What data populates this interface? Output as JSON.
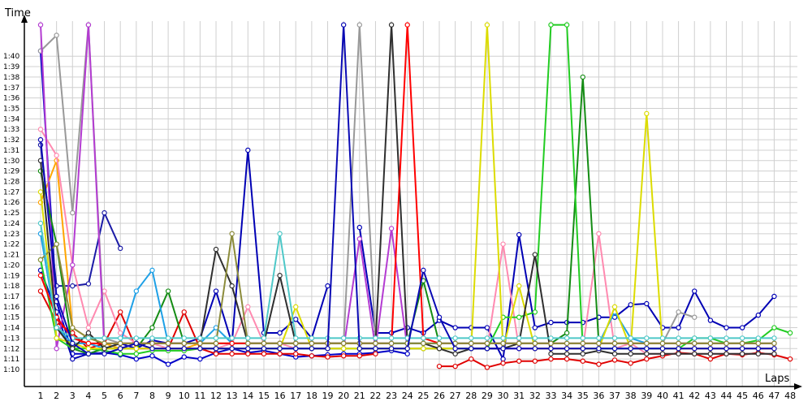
{
  "chart_data": {
    "type": "line",
    "title": "",
    "xlabel": "Laps",
    "ylabel": "Time",
    "x": [
      1,
      2,
      3,
      4,
      5,
      6,
      7,
      8,
      9,
      10,
      11,
      12,
      13,
      14,
      15,
      16,
      17,
      18,
      19,
      20,
      21,
      22,
      23,
      24,
      25,
      26,
      27,
      28,
      29,
      30,
      31,
      32,
      33,
      34,
      35,
      36,
      37,
      38,
      39,
      40,
      41,
      42,
      43,
      44,
      45,
      46,
      47,
      48
    ],
    "y_tick_labels": [
      "1:10",
      "1:11",
      "1:12",
      "1:13",
      "1:14",
      "1:15",
      "1:16",
      "1:17",
      "1:18",
      "1:19",
      "1:20",
      "1:21",
      "1:22",
      "1:23",
      "1:24",
      "1:25",
      "1:26",
      "1:27",
      "1:28",
      "1:29",
      "1:30",
      "1:31",
      "1:32",
      "1:33",
      "1:34",
      "1:35",
      "1:36",
      "1:37",
      "1:38",
      "1:39",
      "1:40"
    ],
    "y_unit": "seconds",
    "ylim": [
      69,
      103
    ],
    "grid": true,
    "legend": "none",
    "series": [
      {
        "color": "#0000c8",
        "values": [
          100.5,
          76.5,
          71.5,
          71.5,
          71.6,
          71.4,
          71.0,
          71.3,
          70.5,
          71.2,
          71.0,
          71.6,
          72.0,
          71.6,
          71.8,
          71.5,
          71.2,
          71.3,
          71.4,
          71.5,
          71.5,
          71.6,
          71.8,
          71.5,
          null,
          null,
          null,
          null,
          null,
          null,
          null,
          null,
          null,
          null,
          null,
          null,
          null,
          null,
          null,
          null,
          null,
          null,
          null,
          null,
          null,
          null,
          null,
          null
        ]
      },
      {
        "color": "#1a1aa6",
        "values": [
          91.5,
          78.0,
          78.0,
          78.2,
          85.0,
          81.6,
          null,
          null,
          null,
          null,
          null,
          null,
          null,
          null,
          null,
          null,
          null,
          null,
          null,
          null,
          null,
          null,
          null,
          null,
          null,
          null,
          null,
          null,
          null,
          null,
          null,
          null,
          null,
          null,
          null,
          null,
          null,
          null,
          null,
          null,
          null,
          null,
          null,
          null,
          null,
          null,
          null,
          null
        ]
      },
      {
        "color": "#0000b4",
        "values": [
          79.5,
          75.5,
          71.0,
          71.5,
          72.0,
          72.5,
          72.0,
          72.8,
          72.5,
          72.5,
          73.0,
          77.5,
          72.5,
          91.0,
          73.5,
          73.5,
          74.8,
          73.0,
          78.0,
          null,
          83.6,
          73.5,
          73.5,
          74.0,
          73.5,
          74.7,
          74.0,
          74.0,
          74.0,
          71.0,
          82.9,
          74.0,
          74.5,
          74.5,
          74.5,
          75.0,
          75.0,
          76.2,
          76.3,
          74.0,
          74.0,
          77.5,
          74.7,
          74.0,
          74.0,
          75.2,
          77.0,
          null
        ]
      },
      {
        "color": "#e00000",
        "values": [
          77.5,
          74.5,
          73.5,
          72.0,
          72.5,
          75.5,
          72.0,
          72.0,
          72.0,
          75.5,
          72.0,
          71.5,
          71.5,
          71.5,
          71.5,
          71.5,
          71.5,
          71.3,
          71.2,
          71.3,
          71.3,
          71.5,
          null,
          null,
          null,
          70.3,
          70.3,
          71.0,
          70.2,
          70.6,
          70.8,
          70.8,
          71.0,
          71.0,
          70.8,
          70.5,
          70.9,
          70.6,
          71.0,
          71.3,
          71.6,
          71.5,
          71.0,
          71.5,
          71.4,
          71.6,
          71.4,
          71.0
        ]
      },
      {
        "color": "#ffa500",
        "values": [
          86.0,
          90.0,
          74.0,
          73.0,
          72.5,
          72.0,
          72.5,
          72.0,
          72.0,
          72.0,
          72.5,
          72.5,
          72.5,
          72.5,
          72.5,
          72.5,
          72.5,
          72.5,
          72.5,
          72.5,
          72.5,
          72.5,
          72.5,
          72.5,
          72.5,
          null,
          null,
          null,
          null,
          null,
          null,
          null,
          null,
          null,
          null,
          null,
          null,
          null,
          null,
          null,
          null,
          null,
          null,
          null,
          null,
          null,
          null,
          null
        ]
      },
      {
        "color": "#ff8ab0",
        "values": [
          93.0,
          90.5,
          80.0,
          74.0,
          77.5,
          73.5,
          72.5,
          72.5,
          72.0,
          72.0,
          72.0,
          72.0,
          72.5,
          76.0,
          72.5,
          72.5,
          72.0,
          72.0,
          72.0,
          72.0,
          72.0,
          72.0,
          72.0,
          72.0,
          72.0,
          72.0,
          72.0,
          72.0,
          72.0,
          82.0,
          72.0,
          72.0,
          72.0,
          72.0,
          72.0,
          83.0,
          72.0,
          72.5,
          71.5,
          71.5,
          71.5,
          71.5,
          71.5,
          71.5,
          71.5,
          71.5,
          71.5,
          null
        ]
      },
      {
        "color": "#999999",
        "values": [
          100.5,
          102.0,
          85.0,
          103.0,
          73.0,
          72.5,
          72.5,
          72.5,
          72.5,
          72.5,
          72.5,
          72.5,
          72.5,
          72.5,
          72.5,
          72.5,
          72.5,
          72.5,
          72.5,
          72.5,
          103.0,
          72.5,
          72.5,
          72.5,
          72.5,
          72.5,
          72.5,
          72.5,
          72.5,
          72.5,
          72.5,
          72.5,
          72.5,
          72.5,
          72.5,
          72.5,
          72.5,
          72.5,
          72.5,
          72.5,
          75.5,
          75.0,
          null,
          null,
          null,
          null,
          null,
          null
        ]
      },
      {
        "color": "#b43cd2",
        "values": [
          103.0,
          72.0,
          80.0,
          103.0,
          72.0,
          72.0,
          72.0,
          72.0,
          72.0,
          72.0,
          72.0,
          72.0,
          72.0,
          72.0,
          72.0,
          72.0,
          72.0,
          72.0,
          72.0,
          72.0,
          82.5,
          72.0,
          83.5,
          72.0,
          72.0,
          72.0,
          72.0,
          72.0,
          72.0,
          72.0,
          72.0,
          72.0,
          72.0,
          72.0,
          72.0,
          72.0,
          72.0,
          72.0,
          72.0,
          72.0,
          72.0,
          72.0,
          72.0,
          72.0,
          72.0,
          72.0,
          72.0,
          null
        ]
      },
      {
        "color": "#148c14",
        "values": [
          89.0,
          82.0,
          72.0,
          71.5,
          72.0,
          72.0,
          72.0,
          74.0,
          77.5,
          72.5,
          72.5,
          72.5,
          72.5,
          72.5,
          72.5,
          72.5,
          72.5,
          72.5,
          72.5,
          72.5,
          72.5,
          72.5,
          72.5,
          72.5,
          78.5,
          72.5,
          72.5,
          72.5,
          72.5,
          72.5,
          72.5,
          72.5,
          72.5,
          73.5,
          98.0,
          72.5,
          72.5,
          72.5,
          72.5,
          72.5,
          72.5,
          72.5,
          72.5,
          72.5,
          72.5,
          72.5,
          72.5,
          null
        ]
      },
      {
        "color": "#22cc22",
        "values": [
          80.5,
          73.0,
          72.0,
          72.0,
          71.8,
          71.5,
          71.5,
          71.8,
          71.8,
          71.8,
          72.0,
          72.0,
          72.0,
          72.0,
          72.0,
          72.0,
          72.0,
          72.0,
          72.0,
          72.0,
          72.0,
          72.0,
          72.0,
          72.0,
          72.0,
          72.0,
          72.0,
          72.0,
          72.0,
          75.0,
          75.0,
          75.5,
          103.0,
          103.0,
          72.0,
          72.0,
          72.0,
          72.0,
          72.0,
          72.0,
          72.0,
          73.0,
          73.0,
          72.5,
          72.5,
          72.8,
          74.0,
          73.5
        ]
      },
      {
        "color": "#1ea0e6",
        "values": [
          83.0,
          74.0,
          72.5,
          72.5,
          72.0,
          72.5,
          77.5,
          79.5,
          72.5,
          72.5,
          72.5,
          74.0,
          72.5,
          72.5,
          72.5,
          72.5,
          72.5,
          72.5,
          72.5,
          72.5,
          72.5,
          72.5,
          72.5,
          72.5,
          72.5,
          72.5,
          72.5,
          72.5,
          72.5,
          72.5,
          72.5,
          72.5,
          72.5,
          72.5,
          72.5,
          72.5,
          75.5,
          73.0,
          72.5,
          72.5,
          72.5,
          72.5,
          72.5,
          72.5,
          72.5,
          72.5,
          72.5,
          null
        ]
      },
      {
        "color": "#dcdc00",
        "values": [
          87.0,
          73.0,
          72.5,
          72.0,
          72.0,
          72.0,
          72.0,
          72.0,
          72.0,
          72.0,
          72.0,
          72.0,
          72.0,
          72.0,
          72.0,
          72.0,
          76.0,
          72.0,
          72.0,
          72.0,
          72.0,
          72.0,
          72.0,
          72.0,
          72.0,
          72.0,
          72.0,
          72.0,
          103.0,
          72.0,
          78.0,
          72.0,
          72.0,
          72.0,
          72.0,
          72.0,
          76.0,
          72.0,
          94.5,
          72.0,
          72.0,
          72.0,
          72.0,
          72.0,
          72.0,
          72.0,
          72.0,
          null
        ]
      },
      {
        "color": "#2f2f2f",
        "values": [
          90.0,
          74.0,
          72.0,
          73.5,
          72.0,
          72.5,
          72.5,
          72.5,
          72.5,
          72.5,
          72.5,
          81.5,
          78.0,
          72.5,
          72.5,
          79.0,
          72.5,
          72.5,
          72.5,
          72.5,
          72.5,
          72.5,
          103.0,
          72.5,
          72.5,
          72.0,
          71.5,
          72.0,
          72.0,
          72.0,
          72.5,
          81.0,
          71.5,
          71.5,
          71.5,
          71.8,
          71.5,
          71.5,
          71.5,
          71.5,
          71.5,
          71.5,
          71.5,
          71.5,
          71.5,
          71.5,
          71.5,
          null
        ]
      },
      {
        "color": "#ff0000",
        "values": [
          79.0,
          75.0,
          73.0,
          72.5,
          72.5,
          72.5,
          72.5,
          72.5,
          72.5,
          72.5,
          72.5,
          72.5,
          72.5,
          72.5,
          72.5,
          72.5,
          72.5,
          72.5,
          72.5,
          72.5,
          72.5,
          72.5,
          72.5,
          103.0,
          73.0,
          72.5,
          72.5,
          72.5,
          72.5,
          72.5,
          72.5,
          72.5,
          72.5,
          72.5,
          72.5,
          72.5,
          72.5,
          72.5,
          72.5,
          72.5,
          72.5,
          72.5,
          72.5,
          72.5,
          72.5,
          72.5,
          72.5,
          null
        ]
      },
      {
        "color": "#8c8c3c",
        "values": [
          80.5,
          82.0,
          74.0,
          73.0,
          72.5,
          72.5,
          72.5,
          72.5,
          72.5,
          72.5,
          72.5,
          72.5,
          83.0,
          72.5,
          72.5,
          72.5,
          72.5,
          72.5,
          72.5,
          72.5,
          72.5,
          72.5,
          72.5,
          72.5,
          72.5,
          72.5,
          72.5,
          72.5,
          72.5,
          72.5,
          72.5,
          72.5,
          72.5,
          72.5,
          72.5,
          72.5,
          72.5,
          72.5,
          72.5,
          72.5,
          72.5,
          72.5,
          72.5,
          72.5,
          72.5,
          72.5,
          72.5,
          null
        ]
      },
      {
        "color": "#4ec8c8",
        "values": [
          84.0,
          74.0,
          73.0,
          73.0,
          73.0,
          73.0,
          73.0,
          73.0,
          73.0,
          73.0,
          73.0,
          73.0,
          73.0,
          73.0,
          73.0,
          83.0,
          73.0,
          73.0,
          73.0,
          73.0,
          73.0,
          73.0,
          73.0,
          73.0,
          73.0,
          73.0,
          73.0,
          73.0,
          73.0,
          73.0,
          73.0,
          73.0,
          73.0,
          73.0,
          73.0,
          73.0,
          73.0,
          73.0,
          73.0,
          73.0,
          73.0,
          73.0,
          73.0,
          73.0,
          73.0,
          73.0,
          73.0,
          null
        ]
      },
      {
        "color": "#0a0ab4",
        "values": [
          92.0,
          77.0,
          72.5,
          71.5,
          71.5,
          72.0,
          72.5,
          72.0,
          72.0,
          72.0,
          72.0,
          72.0,
          72.0,
          72.0,
          72.0,
          72.0,
          72.0,
          72.0,
          72.0,
          103.0,
          72.0,
          72.0,
          72.0,
          72.0,
          79.5,
          75.0,
          72.0,
          72.0,
          72.0,
          72.0,
          72.0,
          72.0,
          72.0,
          72.0,
          72.0,
          72.0,
          72.0,
          72.0,
          72.0,
          72.0,
          72.0,
          72.0,
          72.0,
          72.0,
          72.0,
          72.0,
          72.0,
          null
        ]
      }
    ]
  }
}
